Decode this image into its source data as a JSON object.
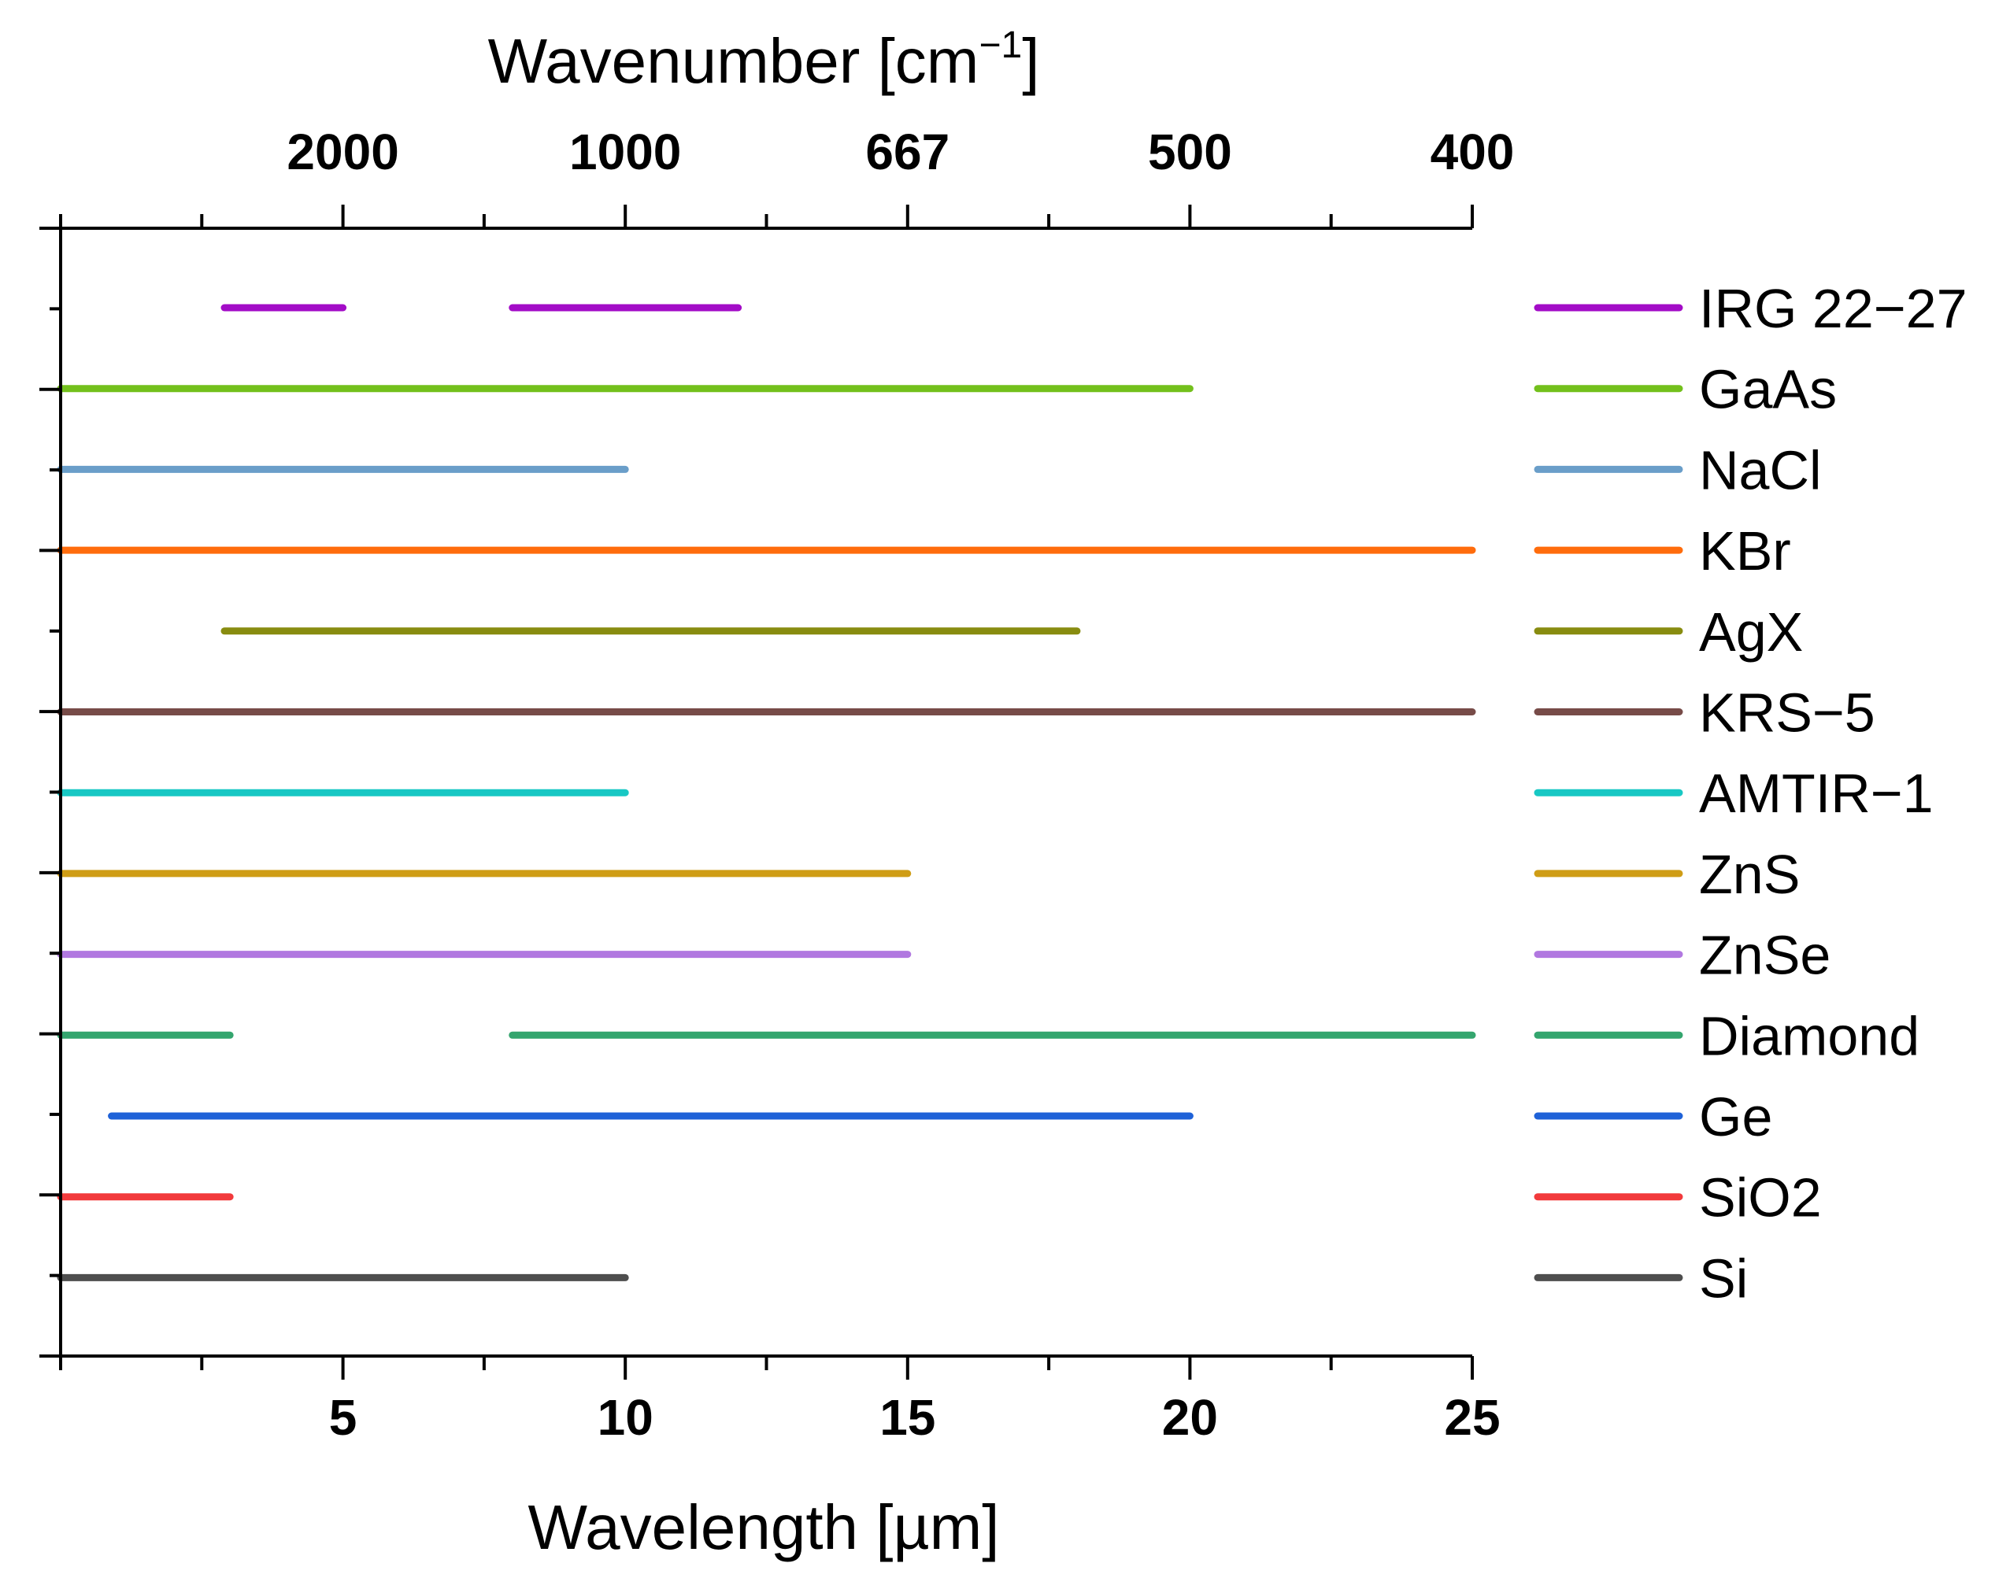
{
  "chart_data": {
    "type": "range-bar",
    "xlabel": "Wavelength [µm]",
    "x2label_base": "Wavenumber [cm",
    "x2label_sup": "−1",
    "x2label_end": "]",
    "xlim": [
      0,
      25
    ],
    "x_ticks": [
      {
        "value": 5,
        "label": "5"
      },
      {
        "value": 10,
        "label": "10"
      },
      {
        "value": 15,
        "label": "15"
      },
      {
        "value": 20,
        "label": "20"
      },
      {
        "value": 25,
        "label": "25"
      }
    ],
    "x2_ticks": [
      {
        "value": 5,
        "label": "2000"
      },
      {
        "value": 10,
        "label": "1000"
      },
      {
        "value": 15,
        "label": "667"
      },
      {
        "value": 20,
        "label": "500"
      },
      {
        "value": 25,
        "label": "400"
      }
    ],
    "series": [
      {
        "name": "IRG 22−27",
        "color": "#a30cc7",
        "ranges": [
          [
            2.9,
            5
          ],
          [
            8,
            12
          ]
        ]
      },
      {
        "name": "GaAs",
        "color": "#73c01c",
        "ranges": [
          [
            0,
            20
          ]
        ]
      },
      {
        "name": "NaCl",
        "color": "#6a9ec9",
        "ranges": [
          [
            0,
            10
          ]
        ]
      },
      {
        "name": "KBr",
        "color": "#ff6c0c",
        "ranges": [
          [
            0,
            25
          ]
        ]
      },
      {
        "name": "AgX",
        "color": "#888c10",
        "ranges": [
          [
            2.9,
            18
          ]
        ]
      },
      {
        "name": "KRS−5",
        "color": "#774b48",
        "ranges": [
          [
            0,
            25
          ]
        ]
      },
      {
        "name": "AMTIR−1",
        "color": "#18c8c4",
        "ranges": [
          [
            0,
            10
          ]
        ]
      },
      {
        "name": "ZnS",
        "color": "#cf9d16",
        "ranges": [
          [
            0,
            15
          ]
        ]
      },
      {
        "name": "ZnSe",
        "color": "#b178e0",
        "ranges": [
          [
            0,
            15
          ]
        ]
      },
      {
        "name": "Diamond",
        "color": "#34a56e",
        "ranges": [
          [
            0,
            3
          ],
          [
            8,
            25
          ]
        ]
      },
      {
        "name": "Ge",
        "color": "#1f62d8",
        "ranges": [
          [
            0.9,
            20
          ]
        ]
      },
      {
        "name": "SiO2",
        "color": "#f23a3c",
        "ranges": [
          [
            0,
            3
          ]
        ]
      },
      {
        "name": "Si",
        "color": "#4e4e4e",
        "ranges": [
          [
            0,
            10
          ]
        ]
      }
    ]
  }
}
